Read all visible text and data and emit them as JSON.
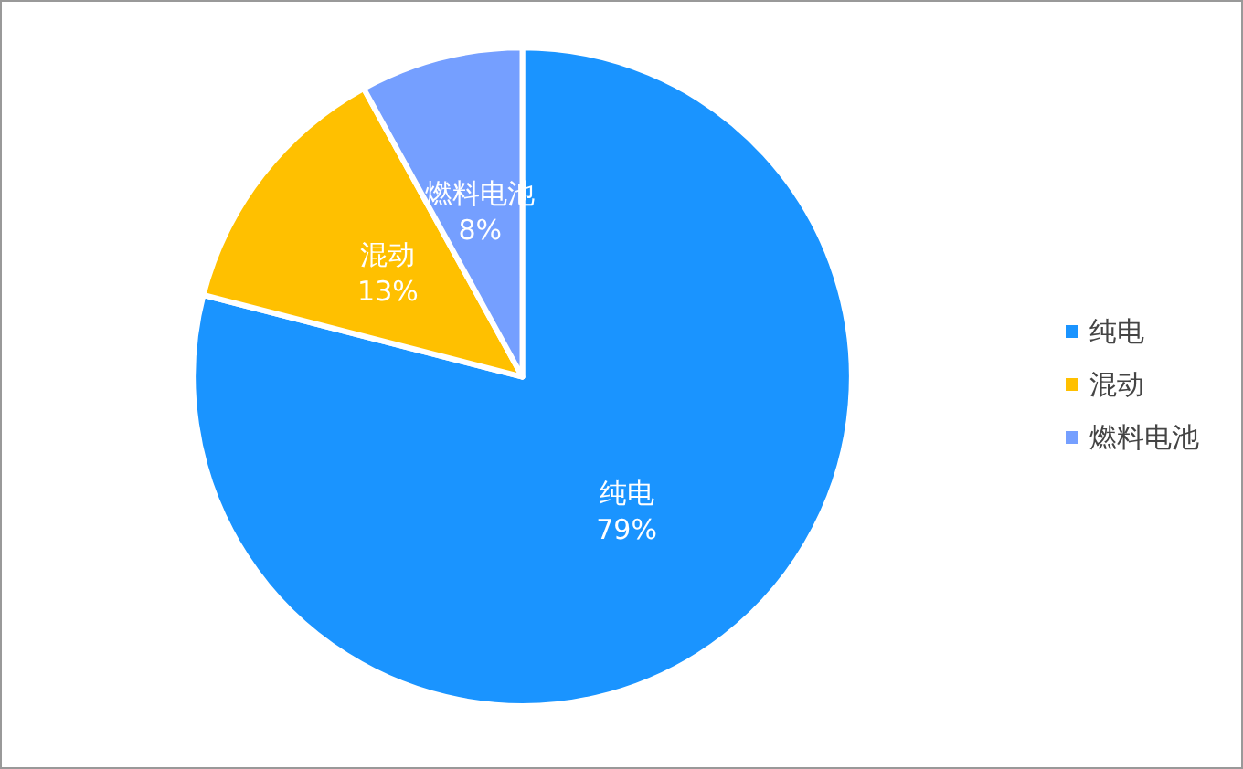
{
  "chart_data": {
    "type": "pie",
    "categories": [
      "纯电",
      "混动",
      "燃料电池"
    ],
    "values": [
      79,
      13,
      8
    ],
    "value_labels": [
      "79%",
      "13%",
      "8%"
    ],
    "colors": [
      "#1a94ff",
      "#ffc000",
      "#759fff"
    ],
    "legend": "right"
  }
}
